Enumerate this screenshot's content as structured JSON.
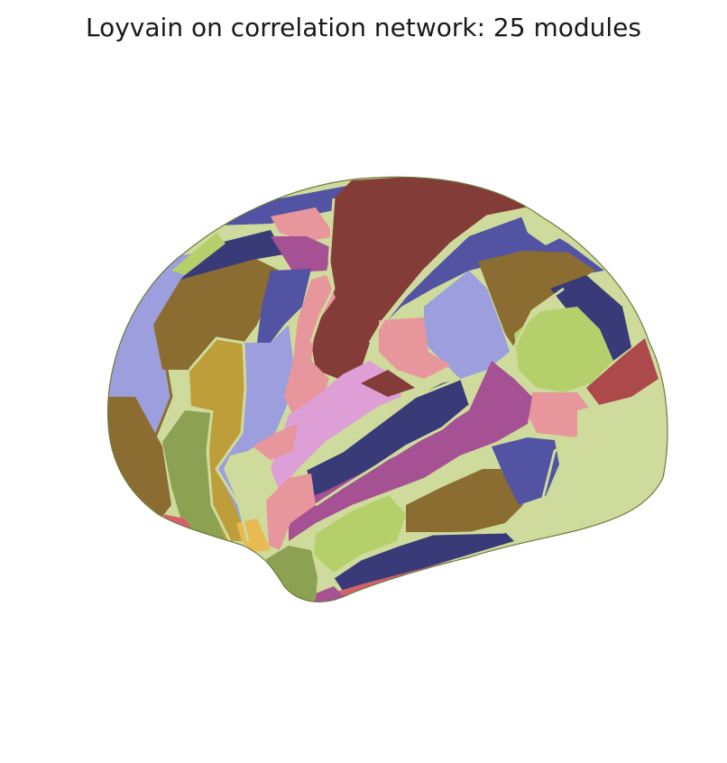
{
  "figure": {
    "title": "Loyvain on correlation network: 25 modules"
  },
  "palette": {
    "navy": "#393b79",
    "indigo": "#5254a3",
    "periwinkle": "#9c9ede",
    "olive": "#8c6d31",
    "mustard": "#bd9e39",
    "gold": "#e7ba52",
    "moss": "#8ca252",
    "lime": "#b5cf6b",
    "sage": "#cedb9c",
    "maroon": "#843c39",
    "brick": "#ad494a",
    "coral": "#d6616b",
    "rose": "#e7969c",
    "plum": "#a55194",
    "orchid": "#de9ed6",
    "seam_light": "#cedb9c",
    "seam_dark": "#8c6d31"
  }
}
